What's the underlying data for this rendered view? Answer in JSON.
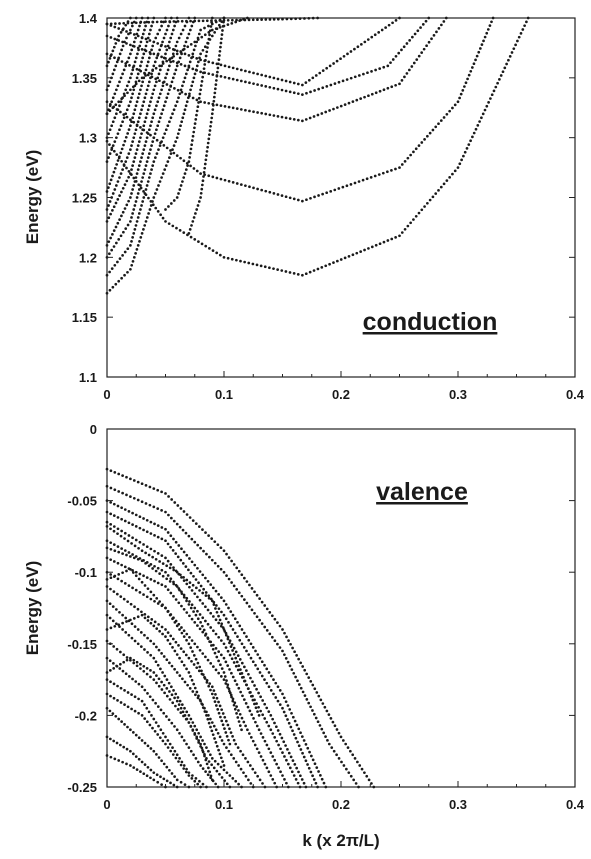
{
  "chart_data": [
    {
      "type": "scatter",
      "label": "conduction",
      "xlabel": "",
      "ylabel": "Energy   (eV)",
      "xlim": [
        0,
        0.4
      ],
      "ylim": [
        1.1,
        1.4
      ],
      "xticks": [
        "0",
        "0.1",
        "0.2",
        "0.3",
        "0.4"
      ],
      "yticks": [
        "1.1",
        "1.15",
        "1.2",
        "1.25",
        "1.3",
        "1.35",
        "1.4"
      ],
      "series": [
        {
          "x": [
            0,
            0.05,
            0.1,
            0.167,
            0.25,
            0.3,
            0.36
          ],
          "y": [
            1.297,
            1.23,
            1.2,
            1.185,
            1.218,
            1.275,
            1.4
          ]
        },
        {
          "x": [
            0,
            0.08,
            0.167,
            0.25,
            0.3,
            0.33
          ],
          "y": [
            1.33,
            1.27,
            1.247,
            1.275,
            1.33,
            1.4
          ]
        },
        {
          "x": [
            0,
            0.08,
            0.167,
            0.25,
            0.29
          ],
          "y": [
            1.37,
            1.33,
            1.314,
            1.345,
            1.4
          ]
        },
        {
          "x": [
            0,
            0.08,
            0.167,
            0.24,
            0.275
          ],
          "y": [
            1.385,
            1.355,
            1.336,
            1.36,
            1.4
          ]
        },
        {
          "x": [
            0,
            0.08,
            0.167,
            0.25
          ],
          "y": [
            1.395,
            1.365,
            1.344,
            1.4
          ]
        },
        {
          "x": [
            0,
            0.02,
            0.04,
            0.06,
            0.08,
            0.1
          ],
          "y": [
            1.17,
            1.19,
            1.25,
            1.3,
            1.37,
            1.4
          ]
        },
        {
          "x": [
            0,
            0.02,
            0.04,
            0.06,
            0.08,
            0.1
          ],
          "y": [
            1.185,
            1.21,
            1.28,
            1.33,
            1.39,
            1.4
          ]
        },
        {
          "x": [
            0,
            0.02,
            0.04,
            0.06,
            0.075
          ],
          "y": [
            1.2,
            1.23,
            1.3,
            1.36,
            1.4
          ]
        },
        {
          "x": [
            0,
            0.02,
            0.04,
            0.06,
            0.07
          ],
          "y": [
            1.21,
            1.25,
            1.32,
            1.38,
            1.4
          ]
        },
        {
          "x": [
            0,
            0.02,
            0.04,
            0.06
          ],
          "y": [
            1.23,
            1.27,
            1.34,
            1.4
          ]
        },
        {
          "x": [
            0,
            0.02,
            0.04,
            0.055
          ],
          "y": [
            1.24,
            1.29,
            1.36,
            1.4
          ]
        },
        {
          "x": [
            0,
            0.02,
            0.04,
            0.05
          ],
          "y": [
            1.255,
            1.31,
            1.38,
            1.4
          ]
        },
        {
          "x": [
            0,
            0.02,
            0.04
          ],
          "y": [
            1.28,
            1.33,
            1.4
          ]
        },
        {
          "x": [
            0,
            0.02,
            0.035
          ],
          "y": [
            1.3,
            1.35,
            1.4
          ]
        },
        {
          "x": [
            0,
            0.02,
            0.03
          ],
          "y": [
            1.32,
            1.37,
            1.4
          ]
        },
        {
          "x": [
            0,
            0.015,
            0.025
          ],
          "y": [
            1.34,
            1.38,
            1.4
          ]
        },
        {
          "x": [
            0,
            0.01,
            0.02
          ],
          "y": [
            1.36,
            1.385,
            1.4
          ]
        },
        {
          "x": [
            0,
            0.03,
            0.06,
            0.09,
            0.12
          ],
          "y": [
            1.32,
            1.35,
            1.37,
            1.39,
            1.4
          ]
        },
        {
          "x": [
            0,
            0.05,
            0.1,
            0.15,
            0.18
          ],
          "y": [
            1.395,
            1.397,
            1.398,
            1.399,
            1.4
          ]
        },
        {
          "x": [
            0.09,
            0.08,
            0.07,
            0.06,
            0.05
          ],
          "y": [
            1.4,
            1.34,
            1.28,
            1.25,
            1.24
          ]
        },
        {
          "x": [
            0.1,
            0.09,
            0.08,
            0.07
          ],
          "y": [
            1.4,
            1.32,
            1.25,
            1.22
          ]
        }
      ]
    },
    {
      "type": "scatter",
      "label": "valence",
      "xlabel": "k (x 2π/L)",
      "ylabel": "Energy   (eV)",
      "xlim": [
        0,
        0.4
      ],
      "ylim": [
        -0.25,
        0
      ],
      "xticks": [
        "0",
        "0.1",
        "0.2",
        "0.3",
        "0.4"
      ],
      "yticks": [
        "0",
        "-0.05",
        "-0.1",
        "-0.15",
        "-0.2",
        "-0.25"
      ],
      "series": [
        {
          "x": [
            0,
            0.05,
            0.1,
            0.15,
            0.2,
            0.228
          ],
          "y": [
            -0.028,
            -0.045,
            -0.085,
            -0.14,
            -0.215,
            -0.25
          ]
        },
        {
          "x": [
            0,
            0.05,
            0.1,
            0.15,
            0.19,
            0.215
          ],
          "y": [
            -0.04,
            -0.058,
            -0.1,
            -0.155,
            -0.22,
            -0.25
          ]
        },
        {
          "x": [
            0,
            0.05,
            0.1,
            0.15,
            0.187
          ],
          "y": [
            -0.05,
            -0.07,
            -0.12,
            -0.185,
            -0.25
          ]
        },
        {
          "x": [
            0,
            0.05,
            0.1,
            0.15,
            0.18
          ],
          "y": [
            -0.058,
            -0.078,
            -0.13,
            -0.195,
            -0.25
          ]
        },
        {
          "x": [
            0,
            0.05,
            0.1,
            0.14,
            0.17
          ],
          "y": [
            -0.065,
            -0.09,
            -0.14,
            -0.2,
            -0.25
          ]
        },
        {
          "x": [
            0,
            0.05,
            0.1,
            0.14,
            0.165
          ],
          "y": [
            -0.078,
            -0.1,
            -0.15,
            -0.21,
            -0.25
          ]
        },
        {
          "x": [
            0,
            0.05,
            0.1,
            0.13,
            0.155
          ],
          "y": [
            -0.09,
            -0.11,
            -0.16,
            -0.21,
            -0.25
          ]
        },
        {
          "x": [
            0,
            0.05,
            0.1,
            0.12,
            0.145
          ],
          "y": [
            -0.1,
            -0.125,
            -0.175,
            -0.21,
            -0.25
          ]
        },
        {
          "x": [
            0,
            0.05,
            0.09,
            0.11,
            0.135
          ],
          "y": [
            -0.11,
            -0.14,
            -0.18,
            -0.22,
            -0.25
          ]
        },
        {
          "x": [
            0,
            0.04,
            0.08,
            0.1,
            0.125
          ],
          "y": [
            -0.12,
            -0.15,
            -0.19,
            -0.22,
            -0.25
          ]
        },
        {
          "x": [
            0,
            0.04,
            0.07,
            0.09,
            0.115
          ],
          "y": [
            -0.13,
            -0.16,
            -0.2,
            -0.23,
            -0.25
          ]
        },
        {
          "x": [
            0,
            0.04,
            0.07,
            0.085,
            0.105
          ],
          "y": [
            -0.148,
            -0.175,
            -0.205,
            -0.23,
            -0.25
          ]
        },
        {
          "x": [
            0,
            0.03,
            0.06,
            0.08,
            0.095
          ],
          "y": [
            -0.16,
            -0.18,
            -0.21,
            -0.235,
            -0.25
          ]
        },
        {
          "x": [
            0,
            0.03,
            0.05,
            0.07,
            0.085
          ],
          "y": [
            -0.175,
            -0.19,
            -0.215,
            -0.24,
            -0.25
          ]
        },
        {
          "x": [
            0,
            0.03,
            0.05,
            0.07,
            0.08
          ],
          "y": [
            -0.185,
            -0.2,
            -0.22,
            -0.242,
            -0.25
          ]
        },
        {
          "x": [
            0,
            0.02,
            0.04,
            0.06,
            0.07
          ],
          "y": [
            -0.195,
            -0.21,
            -0.225,
            -0.245,
            -0.25
          ]
        },
        {
          "x": [
            0,
            0.02,
            0.04,
            0.06
          ],
          "y": [
            -0.215,
            -0.225,
            -0.24,
            -0.25
          ]
        },
        {
          "x": [
            0,
            0.02,
            0.04,
            0.05
          ],
          "y": [
            -0.228,
            -0.235,
            -0.245,
            -0.25
          ]
        },
        {
          "x": [
            0,
            0.03,
            0.06,
            0.09,
            0.11,
            0.13
          ],
          "y": [
            -0.068,
            -0.085,
            -0.1,
            -0.12,
            -0.16,
            -0.2
          ]
        },
        {
          "x": [
            0,
            0.03,
            0.06,
            0.08,
            0.1,
            0.115
          ],
          "y": [
            -0.083,
            -0.092,
            -0.11,
            -0.135,
            -0.17,
            -0.21
          ]
        },
        {
          "x": [
            0,
            0.02,
            0.05,
            0.07,
            0.09,
            0.105
          ],
          "y": [
            -0.105,
            -0.098,
            -0.125,
            -0.15,
            -0.185,
            -0.22
          ]
        },
        {
          "x": [
            0,
            0.03,
            0.05,
            0.07,
            0.085,
            0.1
          ],
          "y": [
            -0.14,
            -0.13,
            -0.145,
            -0.17,
            -0.2,
            -0.235
          ]
        },
        {
          "x": [
            0,
            0.02,
            0.04,
            0.06,
            0.08,
            0.09
          ],
          "y": [
            -0.17,
            -0.16,
            -0.17,
            -0.19,
            -0.22,
            -0.245
          ]
        }
      ]
    }
  ]
}
